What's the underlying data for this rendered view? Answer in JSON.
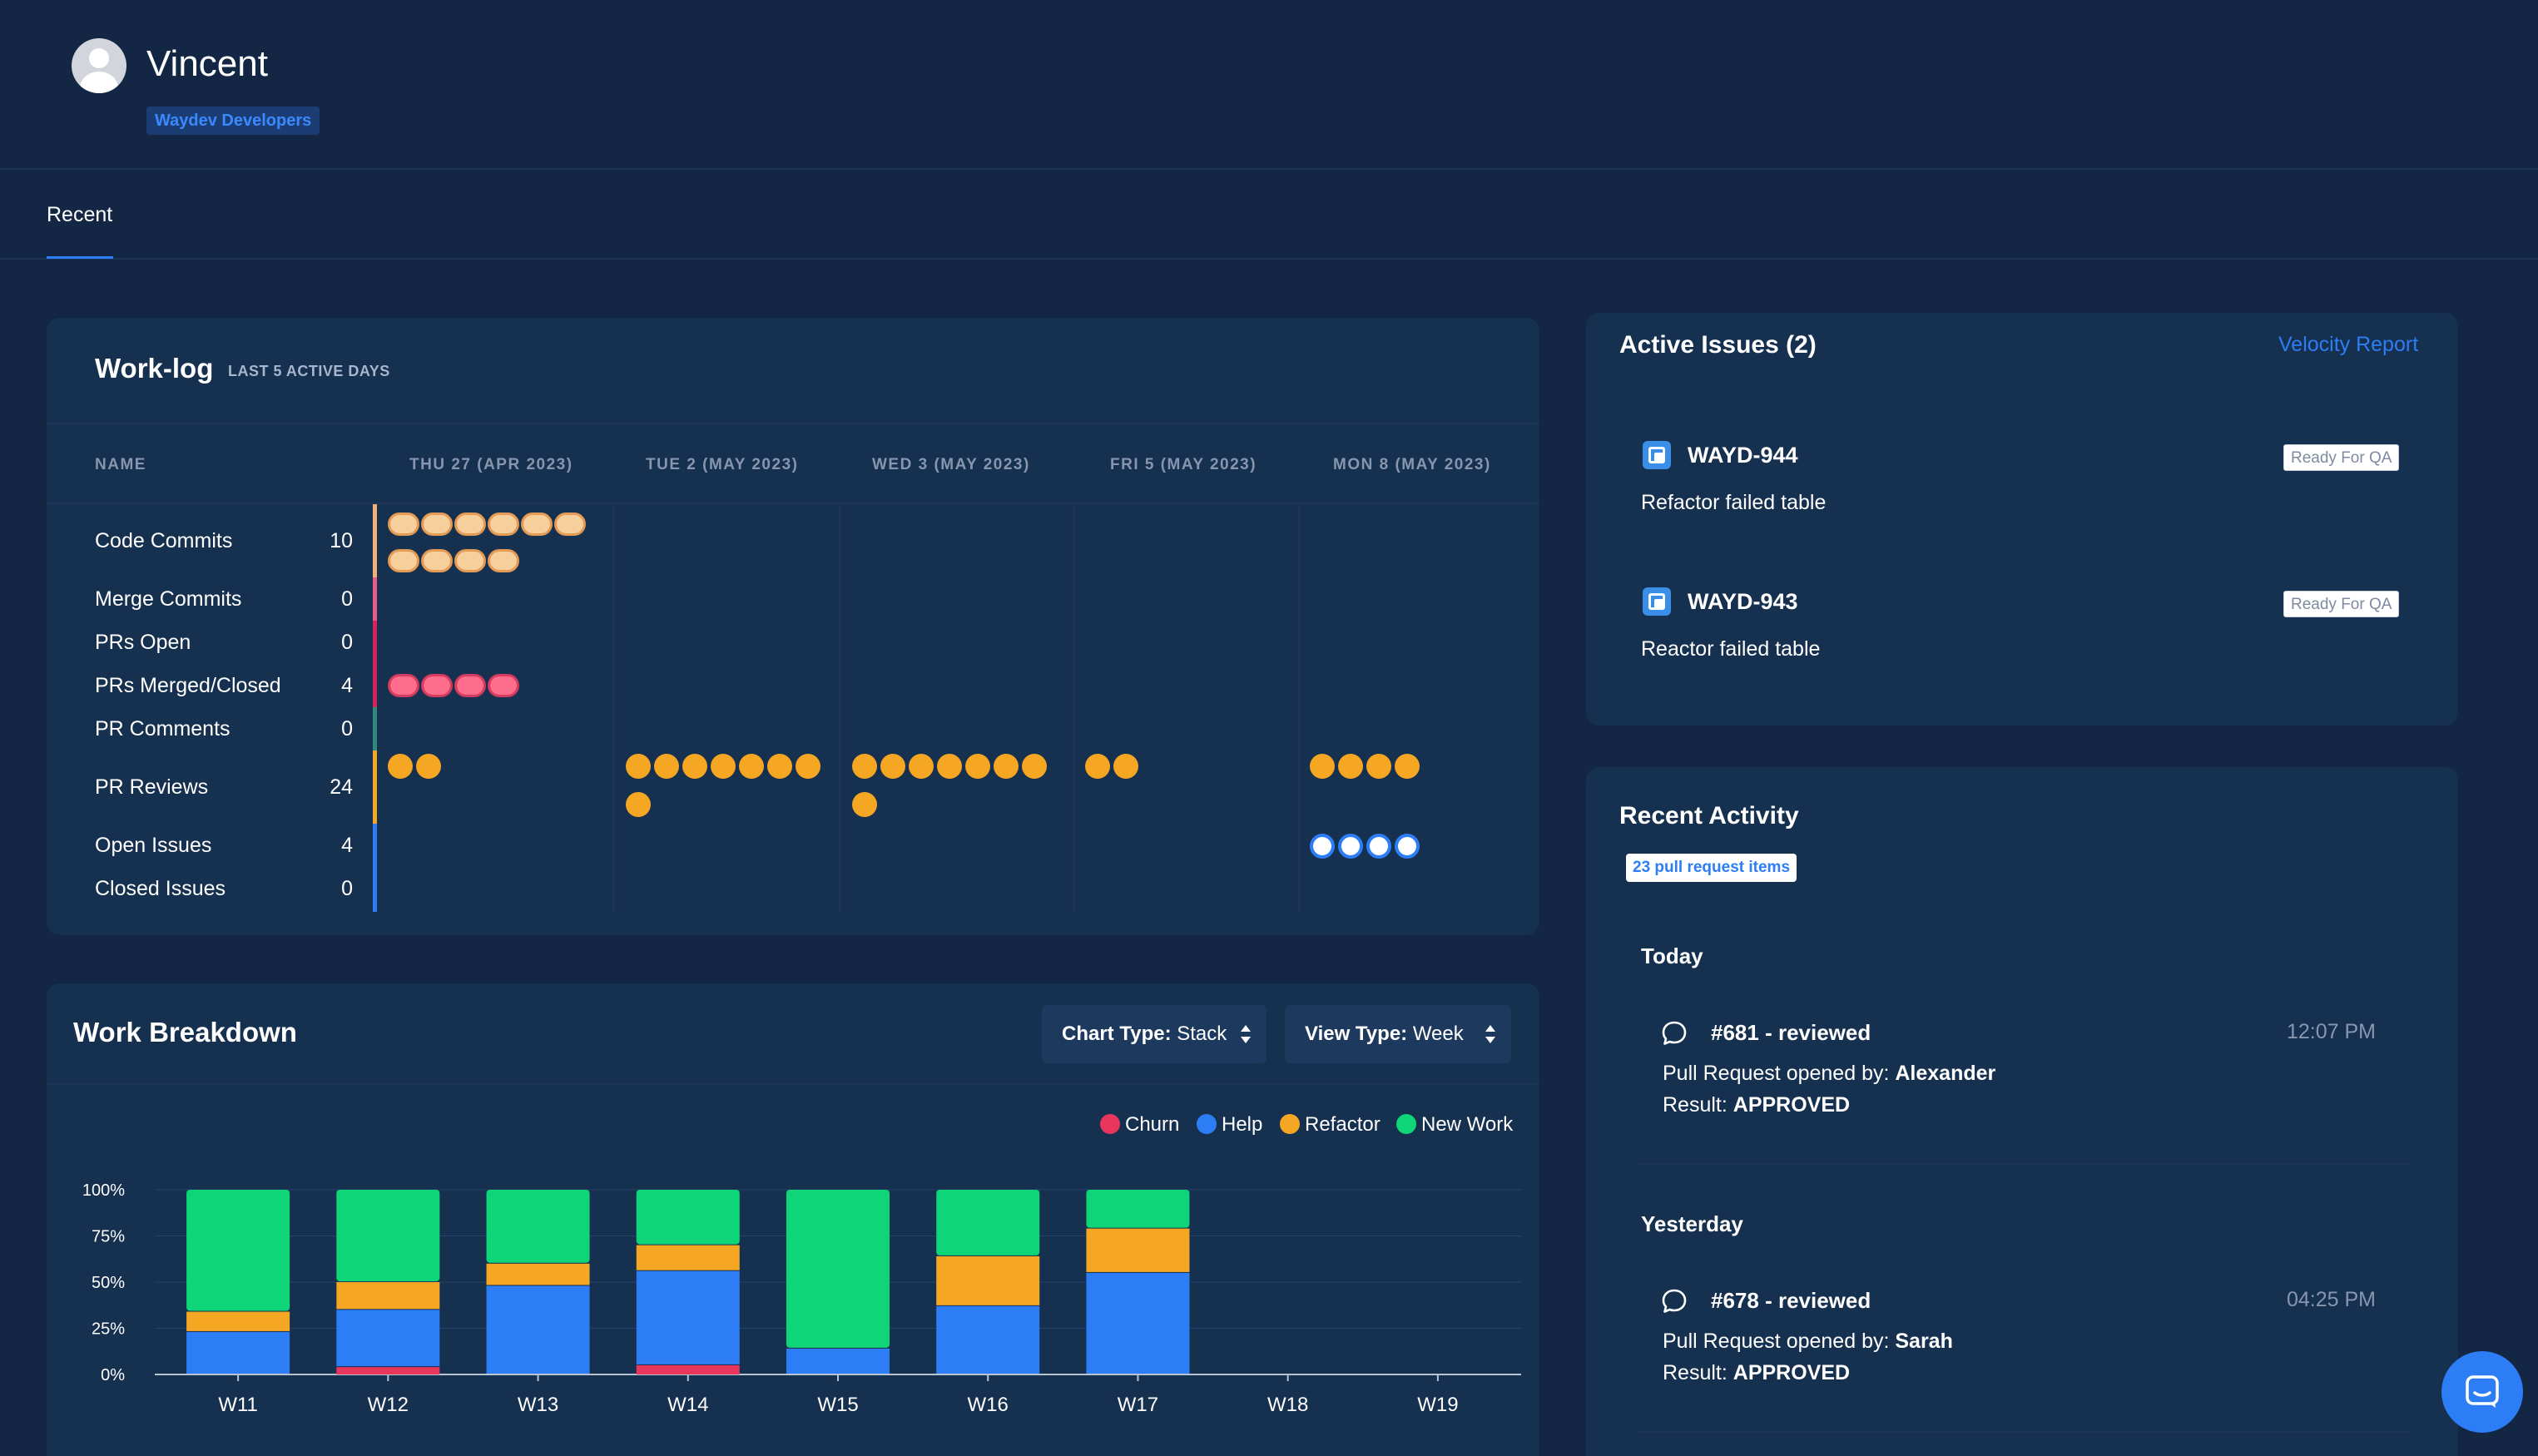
{
  "user": {
    "name": "Vincent",
    "team": "Waydev Developers"
  },
  "tabs": [
    {
      "label": "Recent",
      "active": true
    }
  ],
  "worklog": {
    "title": "Work-log",
    "subtitle": "LAST 5 ACTIVE DAYS",
    "columns": [
      "NAME",
      "THU 27 (APR 2023)",
      "TUE 2 (MAY 2023)",
      "WED 3 (MAY 2023)",
      "FRI 5 (MAY 2023)",
      "MON 8 (MAY 2023)"
    ],
    "metrics": [
      {
        "label": "Code Commits",
        "count": "10",
        "color": "#f0b077",
        "per_day": [
          10,
          0,
          0,
          0,
          0
        ]
      },
      {
        "label": "Merge Commits",
        "count": "0",
        "color": "#e85b86",
        "per_day": [
          0,
          0,
          0,
          0,
          0
        ]
      },
      {
        "label": "PRs Open",
        "count": "0",
        "color": "#d6245a",
        "per_day": [
          0,
          0,
          0,
          0,
          0
        ]
      },
      {
        "label": "PRs Merged/Closed",
        "count": "4",
        "color": "#d6245a",
        "per_day": [
          4,
          0,
          0,
          0,
          0
        ]
      },
      {
        "label": "PR Comments",
        "count": "0",
        "color": "#2f8a7c",
        "per_day": [
          0,
          0,
          0,
          0,
          0
        ]
      },
      {
        "label": "PR Reviews",
        "count": "24",
        "color": "#f5a623",
        "per_day": [
          2,
          8,
          8,
          2,
          4
        ]
      },
      {
        "label": "Open Issues",
        "count": "4",
        "color": "#2d7df6",
        "per_day": [
          0,
          0,
          0,
          0,
          4
        ]
      },
      {
        "label": "Closed Issues",
        "count": "0",
        "color": "#2d7df6",
        "per_day": [
          0,
          0,
          0,
          0,
          0
        ]
      }
    ]
  },
  "breakdown": {
    "title": "Work Breakdown",
    "chart_type_label": "Chart Type:",
    "chart_type_value": "Stack",
    "view_type_label": "View Type:",
    "view_type_value": "Week"
  },
  "chart_data": {
    "type": "bar",
    "stacked": true,
    "categories": [
      "W11",
      "W12",
      "W13",
      "W14",
      "W15",
      "W16",
      "W17",
      "W18",
      "W19"
    ],
    "series": [
      {
        "name": "Churn",
        "color": "#e8365d",
        "values": [
          0,
          4,
          0,
          5,
          0,
          0,
          0,
          0,
          0
        ]
      },
      {
        "name": "Help",
        "color": "#2d7df6",
        "values": [
          23,
          31,
          48,
          51,
          14,
          37,
          55,
          0,
          0
        ]
      },
      {
        "name": "Refactor",
        "color": "#f5a623",
        "values": [
          11,
          15,
          12,
          14,
          0,
          27,
          24,
          0,
          0
        ]
      },
      {
        "name": "New Work",
        "color": "#0ed678",
        "values": [
          66,
          50,
          40,
          30,
          86,
          36,
          21,
          0,
          0
        ]
      }
    ],
    "y_ticks": [
      "100%",
      "75%",
      "50%",
      "25%",
      "0%"
    ],
    "ylim": [
      0,
      100
    ],
    "legend_position": "top-right",
    "grid": true
  },
  "issues": {
    "title": "Active Issues (2)",
    "link": "Velocity Report",
    "items": [
      {
        "id": "WAYD-944",
        "status": "Ready For QA",
        "desc": "Refactor failed table"
      },
      {
        "id": "WAYD-943",
        "status": "Ready For QA",
        "desc": "Reactor failed table"
      }
    ]
  },
  "activity": {
    "title": "Recent Activity",
    "badge": "23 pull request items",
    "groups": [
      {
        "day": "Today",
        "item": {
          "title": "#681 - reviewed",
          "time": "12:07 PM",
          "opened_by_label": "Pull Request opened by:",
          "opened_by": "Alexander",
          "result_label": "Result:",
          "result": "APPROVED"
        }
      },
      {
        "day": "Yesterday",
        "item": {
          "title": "#678 - reviewed",
          "time": "04:25 PM",
          "opened_by_label": "Pull Request opened by:",
          "opened_by": "Sarah",
          "result_label": "Result:",
          "result": "APPROVED"
        }
      }
    ]
  }
}
